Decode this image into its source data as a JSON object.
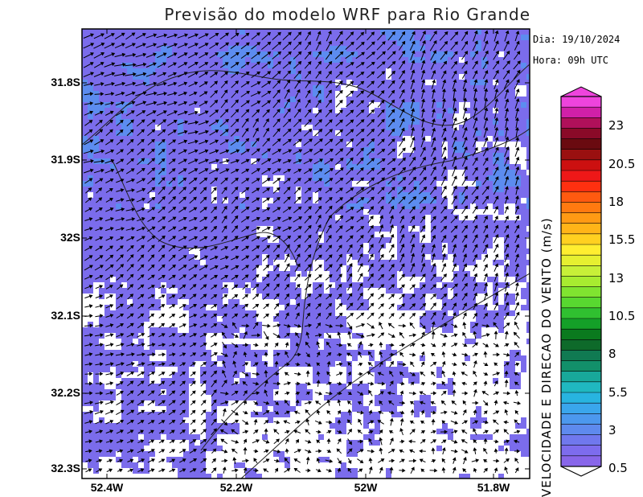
{
  "title": "Previsão do modelo WRF para Rio Grande",
  "info": {
    "date": "Dia: 19/10/2024",
    "hour": "Hora: 09h UTC"
  },
  "lat_ticks": [
    "31.8S",
    "31.9S",
    "32S",
    "32.1S",
    "32.2S",
    "32.3S"
  ],
  "lon_ticks": [
    "52.4W",
    "52.2W",
    "52W",
    "51.8W"
  ],
  "colorbar": {
    "title": "VELOCIDADE E DIRECAO DO VENTO (m/s)",
    "labels": [
      "23",
      "20.5",
      "18",
      "15.5",
      "13",
      "10.5",
      "8",
      "5.5",
      "3",
      "0.5"
    ],
    "colors": [
      "#ee44dd",
      "#d020a8",
      "#b0105a",
      "#8a0a28",
      "#6a0a10",
      "#9a1010",
      "#cc1010",
      "#ee1818",
      "#ff3010",
      "#ff5a10",
      "#ff7a10",
      "#ff9a14",
      "#ffb418",
      "#ffd020",
      "#ffee30",
      "#e6f030",
      "#c8f038",
      "#a8ec30",
      "#80e430",
      "#58d830",
      "#30c030",
      "#14a028",
      "#0a7a1e",
      "#0e6a2a",
      "#107a52",
      "#12906a",
      "#18a89a",
      "#20b8c0",
      "#28b4e0",
      "#3aa6ec",
      "#4c98ee",
      "#5e8aee",
      "#7078ee",
      "#7d6cee",
      "#8866ea"
    ]
  },
  "field": {
    "base_color": "#7b6cec",
    "strong_color": "#5c8cf0",
    "calm_color": "#ffffff"
  }
}
